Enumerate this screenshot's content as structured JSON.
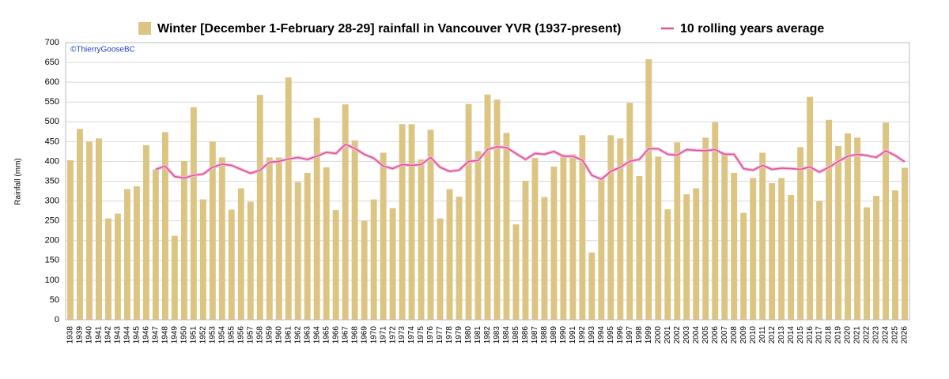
{
  "chart_data": {
    "type": "bar",
    "title": "Winter [December 1-February 28-29] rainfall in Vancouver YVR (1937-present)",
    "credit": "©ThierryGooseBC",
    "ylabel": "Rainfall (mm)",
    "categories": [
      "1938",
      "1939",
      "1940",
      "1941",
      "1942",
      "1943",
      "1944",
      "1945",
      "1946",
      "1947",
      "1948",
      "1949",
      "1950",
      "1951",
      "1952",
      "1953",
      "1954",
      "1955",
      "1956",
      "1957",
      "1958",
      "1959",
      "1960",
      "1961",
      "1962",
      "1963",
      "1964",
      "1965",
      "1966",
      "1967",
      "1968",
      "1969",
      "1970",
      "1971",
      "1972",
      "1973",
      "1974",
      "1975",
      "1976",
      "1977",
      "1978",
      "1979",
      "1980",
      "1981",
      "1982",
      "1983",
      "1984",
      "1985",
      "1986",
      "1987",
      "1988",
      "1989",
      "1990",
      "1991",
      "1992",
      "1993",
      "1994",
      "1995",
      "1996",
      "1997",
      "1998",
      "1999",
      "2000",
      "2001",
      "2002",
      "2003",
      "2004",
      "2005",
      "2006",
      "2007",
      "2008",
      "2009",
      "2010",
      "2011",
      "2012",
      "2013",
      "2014",
      "2015",
      "2016",
      "2017",
      "2018",
      "2019",
      "2020",
      "2021",
      "2022",
      "2023",
      "2024",
      "2025",
      "2026"
    ],
    "series": [
      {
        "name": "Winter [December 1-February 28-29] rainfall in Vancouver YVR (1937-present)",
        "type": "bar",
        "color": "#dcc583",
        "values": [
          403,
          482,
          450,
          458,
          256,
          268,
          330,
          337,
          441,
          380,
          474,
          212,
          401,
          537,
          304,
          450,
          410,
          278,
          332,
          298,
          568,
          410,
          410,
          612,
          348,
          371,
          510,
          385,
          277,
          544,
          453,
          250,
          304,
          422,
          282,
          494,
          494,
          405,
          480,
          256,
          330,
          311,
          545,
          426,
          569,
          556,
          472,
          241,
          351,
          409,
          310,
          387,
          418,
          418,
          466,
          170,
          356,
          466,
          458,
          548,
          363,
          658,
          412,
          279,
          448,
          317,
          332,
          460,
          499,
          420,
          371,
          270,
          358,
          422,
          345,
          358,
          315,
          436,
          563,
          300,
          505,
          439,
          471,
          460,
          284,
          313,
          498,
          327,
          384
        ]
      },
      {
        "name": "10 rolling years average",
        "type": "line",
        "color": "#e0529a",
        "values": [
          null,
          null,
          null,
          null,
          null,
          null,
          null,
          null,
          null,
          380,
          388,
          362,
          358,
          365,
          368,
          385,
          393,
          390,
          380,
          370,
          378,
          398,
          400,
          406,
          410,
          405,
          413,
          423,
          420,
          443,
          433,
          418,
          408,
          388,
          382,
          392,
          390,
          392,
          410,
          385,
          375,
          378,
          400,
          402,
          430,
          437,
          435,
          420,
          405,
          420,
          418,
          425,
          413,
          413,
          403,
          365,
          355,
          375,
          385,
          400,
          405,
          432,
          432,
          418,
          416,
          430,
          428,
          427,
          430,
          418,
          418,
          382,
          378,
          390,
          380,
          383,
          382,
          380,
          386,
          373,
          385,
          400,
          413,
          418,
          415,
          410,
          427,
          415,
          399
        ]
      }
    ],
    "ylim": [
      0,
      700
    ],
    "yticks": [
      0,
      50,
      100,
      150,
      200,
      250,
      300,
      350,
      400,
      450,
      500,
      550,
      600,
      650,
      700
    ],
    "grid": true
  }
}
